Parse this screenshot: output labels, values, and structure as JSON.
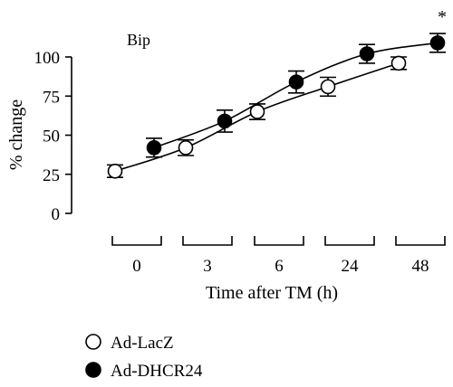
{
  "chart_data": {
    "type": "scatter",
    "title": "Bip",
    "xlabel": "Time after TM (h)",
    "ylabel": "% change",
    "categories": [
      "0",
      "3",
      "6",
      "24",
      "48"
    ],
    "yticks": [
      "0",
      "25",
      "50",
      "75",
      "100"
    ],
    "ylim": [
      0,
      115
    ],
    "grid": false,
    "legend_position": "bottom-left",
    "annotation": "*",
    "series": [
      {
        "name": "Ad-LacZ",
        "marker": "open-circle",
        "values": [
          27,
          42,
          65,
          81,
          96
        ],
        "errors": [
          4,
          5,
          5,
          6,
          4
        ]
      },
      {
        "name": "Ad-DHCR24",
        "marker": "filled-circle",
        "values": [
          42,
          59,
          84,
          102,
          109
        ],
        "errors": [
          6,
          7,
          7,
          6,
          6
        ]
      }
    ],
    "colors": {
      "ink": "#000000",
      "background": "#ffffff"
    }
  }
}
